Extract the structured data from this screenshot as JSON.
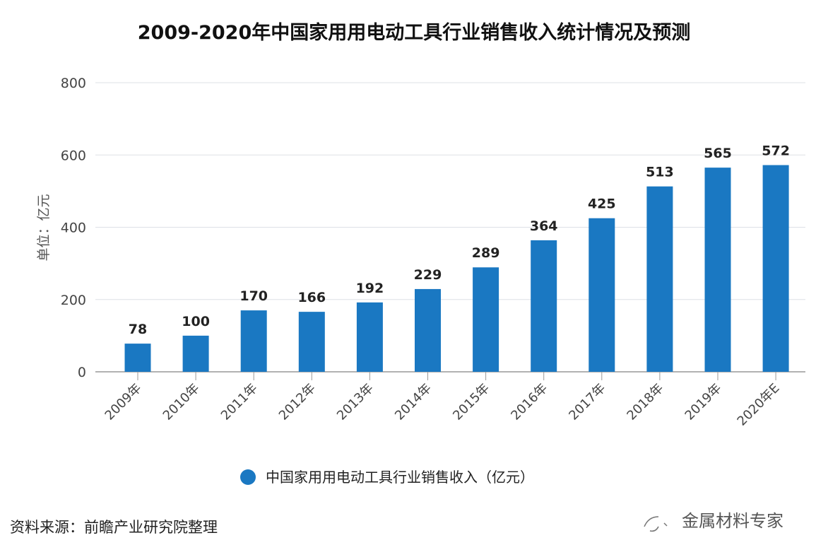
{
  "chart_data": {
    "type": "bar",
    "title": "2009-2020年中国家用用电动工具行业销售收入统计情况及预测",
    "ylabel": "单位：亿元",
    "xlabel": "",
    "ylim": [
      0,
      800
    ],
    "yticks": [
      0,
      200,
      400,
      600,
      800
    ],
    "grid": true,
    "legend_position": "bottom",
    "categories": [
      "2009年",
      "2010年",
      "2011年",
      "2012年",
      "2013年",
      "2014年",
      "2015年",
      "2016年",
      "2017年",
      "2018年",
      "2019年",
      "2020年E"
    ],
    "series": [
      {
        "name": "中国家用用电动工具行业销售收入（亿元）",
        "values": [
          78,
          100,
          170,
          166,
          192,
          229,
          289,
          364,
          425,
          513,
          565,
          572
        ],
        "color": "#1a78c2"
      }
    ]
  },
  "source": "资料来源：前瞻产业研究院整理",
  "watermark": "金属材料专家"
}
